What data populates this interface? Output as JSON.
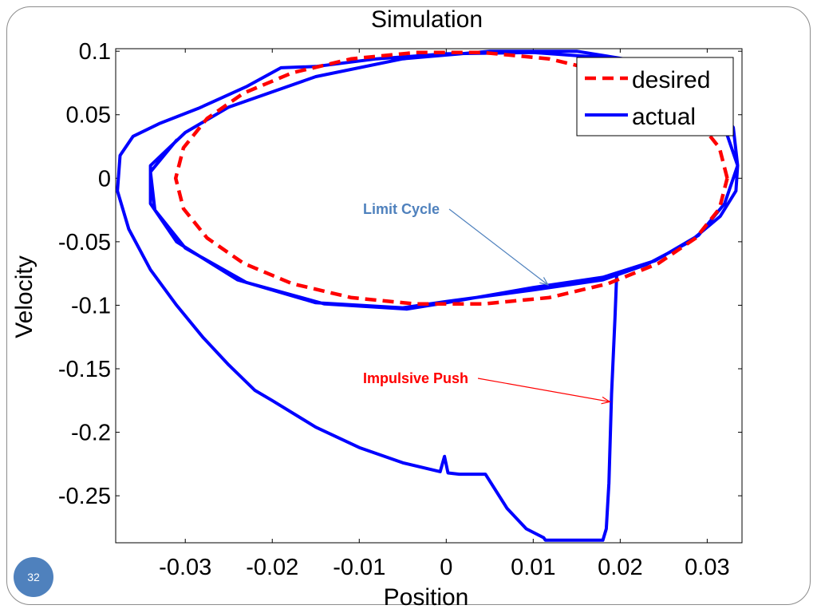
{
  "slide": {
    "number": "32",
    "colors": {
      "frame": "#8c8c8c",
      "badge": "#4f81bd"
    }
  },
  "chart_data": {
    "type": "line",
    "title": "Simulation",
    "xlabel": "Position",
    "ylabel": "Velocity",
    "xlim": [
      -0.038,
      0.034
    ],
    "ylim": [
      -0.287,
      0.102
    ],
    "xticks": [
      -0.03,
      -0.02,
      -0.01,
      0,
      0.01,
      0.02,
      0.03
    ],
    "xtick_labels": [
      "-0.03",
      "-0.02",
      "-0.01",
      "0",
      "0.01",
      "0.02",
      "0.03"
    ],
    "yticks": [
      0.1,
      0.05,
      0,
      -0.05,
      -0.1,
      -0.15,
      -0.2,
      -0.25
    ],
    "ytick_labels": [
      "0.1",
      "0.05",
      "0",
      "-0.05",
      "-0.1",
      "-0.15",
      "-0.2",
      "-0.25"
    ],
    "grid": false,
    "legend_position": "top-right",
    "series": [
      {
        "name": "desired",
        "color": "#ff0000",
        "style": "dashed",
        "points": [
          [
            0.0323,
            0
          ],
          [
            0.0314,
            0.024
          ],
          [
            0.0287,
            0.047
          ],
          [
            0.0244,
            0.067
          ],
          [
            0.0186,
            0.083
          ],
          [
            0.0118,
            0.094
          ],
          [
            0.0042,
            0.099
          ],
          [
            -0.0035,
            0.099
          ],
          [
            -0.0109,
            0.094
          ],
          [
            -0.0177,
            0.083
          ],
          [
            -0.0233,
            0.067
          ],
          [
            -0.0275,
            0.047
          ],
          [
            -0.0302,
            0.024
          ],
          [
            -0.0311,
            0
          ],
          [
            -0.0302,
            -0.024
          ],
          [
            -0.0275,
            -0.047
          ],
          [
            -0.0233,
            -0.067
          ],
          [
            -0.0177,
            -0.083
          ],
          [
            -0.0109,
            -0.094
          ],
          [
            -0.0035,
            -0.099
          ],
          [
            0.0042,
            -0.099
          ],
          [
            0.0118,
            -0.094
          ],
          [
            0.0186,
            -0.083
          ],
          [
            0.0244,
            -0.067
          ],
          [
            0.0287,
            -0.047
          ],
          [
            0.0314,
            -0.024
          ],
          [
            0.0323,
            0
          ]
        ]
      },
      {
        "name": "actual",
        "color": "#0000ff",
        "style": "solid",
        "points": [
          [
            0.0196,
            -0.075
          ],
          [
            0.0194,
            -0.11
          ],
          [
            0.019,
            -0.17
          ],
          [
            0.0187,
            -0.24
          ],
          [
            0.0184,
            -0.276
          ],
          [
            0.018,
            -0.285
          ],
          [
            0.0114,
            -0.285
          ],
          [
            0.0112,
            -0.283
          ],
          [
            0.0092,
            -0.276
          ],
          [
            0.007,
            -0.26
          ],
          [
            0.0045,
            -0.233
          ],
          [
            0.0015,
            -0.233
          ],
          [
            0.0002,
            -0.232
          ],
          [
            -0.0002,
            -0.219
          ],
          [
            -0.0007,
            -0.231
          ],
          [
            -0.005,
            -0.224
          ],
          [
            -0.01,
            -0.212
          ],
          [
            -0.015,
            -0.196
          ],
          [
            -0.02,
            -0.175
          ],
          [
            -0.022,
            -0.167
          ],
          [
            -0.025,
            -0.147
          ],
          [
            -0.028,
            -0.125
          ],
          [
            -0.031,
            -0.1
          ],
          [
            -0.034,
            -0.072
          ],
          [
            -0.0365,
            -0.04
          ],
          [
            -0.0378,
            -0.01
          ],
          [
            -0.0375,
            0.018
          ],
          [
            -0.036,
            0.033
          ],
          [
            -0.033,
            0.043
          ],
          [
            -0.0285,
            0.055
          ],
          [
            -0.023,
            0.072
          ],
          [
            -0.019,
            0.087
          ],
          [
            -0.015,
            0.088
          ],
          [
            -0.008,
            0.094
          ],
          [
            0.0,
            0.098
          ],
          [
            0.01,
            0.099
          ],
          [
            0.02,
            0.094
          ],
          [
            0.027,
            0.076
          ],
          [
            0.0315,
            0.05
          ],
          [
            0.0335,
            0.01
          ],
          [
            0.0333,
            -0.01
          ],
          [
            0.0315,
            -0.03
          ],
          [
            0.028,
            -0.05
          ],
          [
            0.023,
            -0.068
          ],
          [
            0.018,
            -0.08
          ],
          [
            0.01,
            -0.088
          ],
          [
            0.0,
            -0.097
          ],
          [
            -0.005,
            -0.102
          ],
          [
            -0.015,
            -0.098
          ],
          [
            -0.024,
            -0.08
          ],
          [
            -0.031,
            -0.05
          ],
          [
            -0.034,
            -0.02
          ],
          [
            -0.034,
            0.01
          ],
          [
            -0.03,
            0.036
          ],
          [
            -0.025,
            0.056
          ],
          [
            -0.015,
            0.08
          ],
          [
            -0.005,
            0.094
          ],
          [
            0.005,
            0.1
          ],
          [
            0.015,
            0.1
          ],
          [
            0.024,
            0.09
          ],
          [
            0.03,
            0.07
          ],
          [
            0.033,
            0.04
          ],
          [
            0.0335,
            0.01
          ],
          [
            0.032,
            -0.02
          ],
          [
            0.029,
            -0.045
          ],
          [
            0.024,
            -0.065
          ],
          [
            0.018,
            -0.078
          ],
          [
            0.01,
            -0.086
          ],
          [
            0.0,
            -0.098
          ],
          [
            -0.0045,
            -0.103
          ],
          [
            -0.014,
            -0.099
          ],
          [
            -0.023,
            -0.082
          ],
          [
            -0.03,
            -0.055
          ],
          [
            -0.0335,
            -0.025
          ],
          [
            -0.034,
            0.005
          ],
          [
            -0.031,
            0.03
          ]
        ]
      }
    ],
    "annotations": [
      {
        "text": "Limit Cycle",
        "color": "#4f81bd",
        "arrow_to": [
          0.0117,
          -0.084
        ]
      },
      {
        "text": "Impulsive Push",
        "color": "#ff0000",
        "arrow_to": [
          0.0188,
          -0.176
        ]
      }
    ]
  }
}
